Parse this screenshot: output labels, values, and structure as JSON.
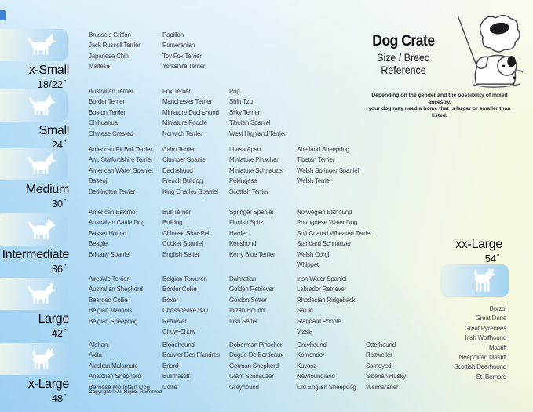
{
  "poster": {
    "title": "Dog Crate",
    "subtitle": [
      "Size / Breed",
      "Reference"
    ],
    "disclaimer": [
      "Depending on the gender and the possibility of mixed ancestry,",
      "your dog may need a home that is larger or smaller than listed."
    ],
    "copyright": "Copyright © All Rights Reserved",
    "inch_mark": "″"
  },
  "sizes": [
    {
      "id": "x-small",
      "label": "x-Small",
      "dimension": "18/22",
      "columns": [
        [
          "Brussels Griffon",
          "Jack Russell Terrier",
          "Japanese Chin",
          "Maltese"
        ],
        [
          "Papillon",
          "Pomeranian",
          "Toy Fox Terrier",
          "Yorkshire Terrier"
        ]
      ]
    },
    {
      "id": "small",
      "label": "Small",
      "dimension": "24",
      "columns": [
        [
          "Australian Terrier",
          "Border Terrier",
          "Boston Terrier",
          "Chihuahua",
          "Chinese Crested"
        ],
        [
          "Fox Terrier",
          "Manchester Terrier",
          "Miniature Dachshund",
          "Miniature Poodle",
          "Norwich Terrier"
        ],
        [
          "Pug",
          "Shih Tzu",
          "Silky Terrier",
          "Tibetan Spaniel",
          "West Highland Terrier"
        ]
      ]
    },
    {
      "id": "medium",
      "label": "Medium",
      "dimension": "30",
      "columns": [
        [
          "American Pit Bull Terrier",
          "Am. Staffordshire Terrier",
          "American Water Spaniel",
          "Basenji",
          "Bedlington Terrier"
        ],
        [
          "Cairn Terrier",
          "Clumber Spaniel",
          "Dachshund",
          "French Bulldog",
          "King Charles Spaniel"
        ],
        [
          "Lhasa Apso",
          "Miniature Pinscher",
          "Miniature Schnauzer",
          "Pekingese",
          "Scottish Terrier"
        ],
        [
          "Shetland Sheepdog",
          "Tibetan Terrier",
          "Welsh Springer Spaniel",
          "Welsh Terrier"
        ]
      ]
    },
    {
      "id": "intermediate",
      "label": "Intermediate",
      "dimension": "36",
      "columns": [
        [
          "American Eskimo",
          "Australian Cattle Dog",
          "Basset Hound",
          "Beagle",
          "Brittany Spaniel"
        ],
        [
          "Bull Terrier",
          "Bulldog",
          "Chinese Shar-Pei",
          "Cocker Spaniel",
          "English Setter"
        ],
        [
          "Springer Spaniel",
          "Finnish Spitz",
          "Harrier",
          "Keeshond",
          "Kerry Blue Terrier"
        ],
        [
          "Norwegian Elkhound",
          "Portuguese Water Dog",
          "Soft Coated Wheaten Terrier",
          "Standard Schnauzer",
          "Welsh Corgi",
          "Whippet"
        ]
      ]
    },
    {
      "id": "large",
      "label": "Large",
      "dimension": "42",
      "columns": [
        [
          "Airedale Terrier",
          "Australian Shepherd",
          "Bearded Collie",
          "Belgian Malinois",
          "Belgian Sheepdog"
        ],
        [
          "Belgian Tervuren",
          "Border Collie",
          "Boxer",
          "Chesapeake Bay Retriever",
          "Chow-Chow"
        ],
        [
          "Dalmatian",
          "Golden Retriever",
          "Gordon Setter",
          "Ibizan Hound",
          "Irish Setter"
        ],
        [
          "Irish Water Spaniel",
          "Labrador Retriever",
          "Rhodesian Ridgeback",
          "Saluki",
          "Standard Poodle",
          "Vizsla"
        ]
      ]
    },
    {
      "id": "x-large",
      "label": "x-Large",
      "dimension": "48",
      "columns": [
        [
          "Afghan",
          "Akita",
          "Alaskan Malamute",
          "Anatolian Shepherd",
          "Bernese Mountain Dog"
        ],
        [
          "Bloodhound",
          "Bouvier Des Flandres",
          "Briard",
          "Bullmastiff",
          "Collie"
        ],
        [
          "Doberman Pinscher",
          "Dogue De Bordeaux",
          "German Shepherd",
          "Giant Schnauzer",
          "Greyhound"
        ],
        [
          "Greyhound",
          "Komondor",
          "Kuvasz",
          "Newfoundland",
          "Old English Sheepdog"
        ],
        [
          "Otterhound",
          "Rottweiler",
          "Samoyed",
          "Siberian Husky",
          "Weimaraner"
        ]
      ]
    },
    {
      "id": "xx-large",
      "label": "xx-Large",
      "dimension": "54",
      "columns": [
        [
          "Borzoi",
          "Great Dane",
          "Great Pyrenees",
          "Irish Wolfhound",
          "Mastiff",
          "Neapolitan Mastiff",
          "Scottish Deerhound",
          "St. Bernard"
        ]
      ]
    }
  ],
  "colors": {
    "background_blue": "#aed9f4",
    "background_green": "#f6f9e3",
    "box_blue": "#a8d5f2",
    "box_pale": "#f0f6e7",
    "edge_mark_blue": "#3b82d4",
    "breed_text": "#41464d"
  }
}
